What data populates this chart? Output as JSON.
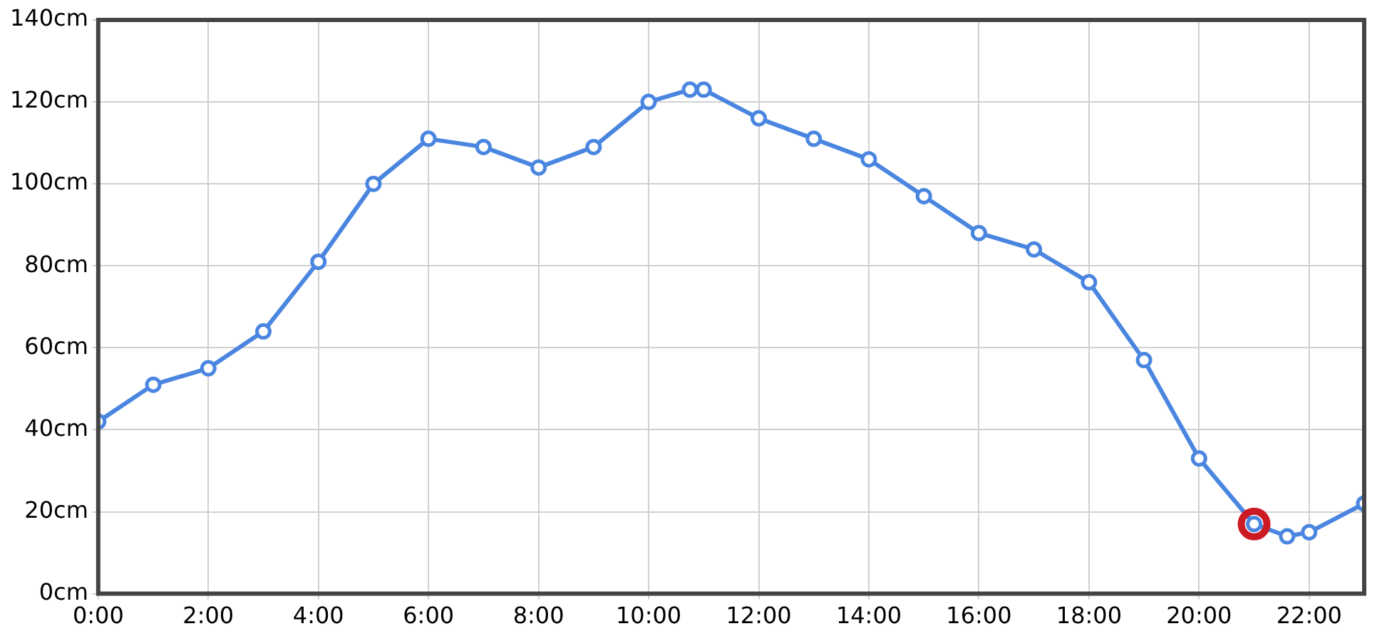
{
  "chart_data": {
    "type": "line",
    "xlim": [
      0,
      23
    ],
    "xticks": [
      {
        "value": 0,
        "label": "0:00"
      },
      {
        "value": 2,
        "label": "2:00"
      },
      {
        "value": 4,
        "label": "4:00"
      },
      {
        "value": 6,
        "label": "6:00"
      },
      {
        "value": 8,
        "label": "8:00"
      },
      {
        "value": 10,
        "label": "10:00"
      },
      {
        "value": 12,
        "label": "12:00"
      },
      {
        "value": 14,
        "label": "14:00"
      },
      {
        "value": 16,
        "label": "16:00"
      },
      {
        "value": 18,
        "label": "18:00"
      },
      {
        "value": 20,
        "label": "20:00"
      },
      {
        "value": 22,
        "label": "22:00"
      }
    ],
    "ylim": [
      0,
      140
    ],
    "yticks": [
      {
        "value": 0,
        "label": "0cm"
      },
      {
        "value": 20,
        "label": "20cm"
      },
      {
        "value": 40,
        "label": "40cm"
      },
      {
        "value": 60,
        "label": "60cm"
      },
      {
        "value": 80,
        "label": "80cm"
      },
      {
        "value": 100,
        "label": "100cm"
      },
      {
        "value": 120,
        "label": "120cm"
      },
      {
        "value": 140,
        "label": "140cm"
      }
    ],
    "grid": true,
    "legend": false,
    "marker": "circle",
    "line_style": "solid",
    "series": [
      {
        "type": "line",
        "color": "#4a86e0",
        "x": [
          0,
          1,
          2,
          3,
          4,
          5,
          6,
          7,
          8,
          9,
          10,
          10.75,
          11,
          12,
          13,
          14,
          15,
          16,
          17,
          18,
          19,
          20,
          21,
          21.6,
          22,
          23
        ],
        "values": [
          42,
          51,
          55,
          64,
          81,
          100,
          111,
          109,
          104,
          109,
          120,
          123,
          123,
          116,
          111,
          106,
          97,
          88,
          84,
          76,
          57,
          33,
          17,
          14,
          15,
          22
        ]
      },
      {
        "type": "scatter",
        "color": "#cc1a24",
        "x": [
          21
        ],
        "values": [
          17
        ]
      }
    ]
  }
}
